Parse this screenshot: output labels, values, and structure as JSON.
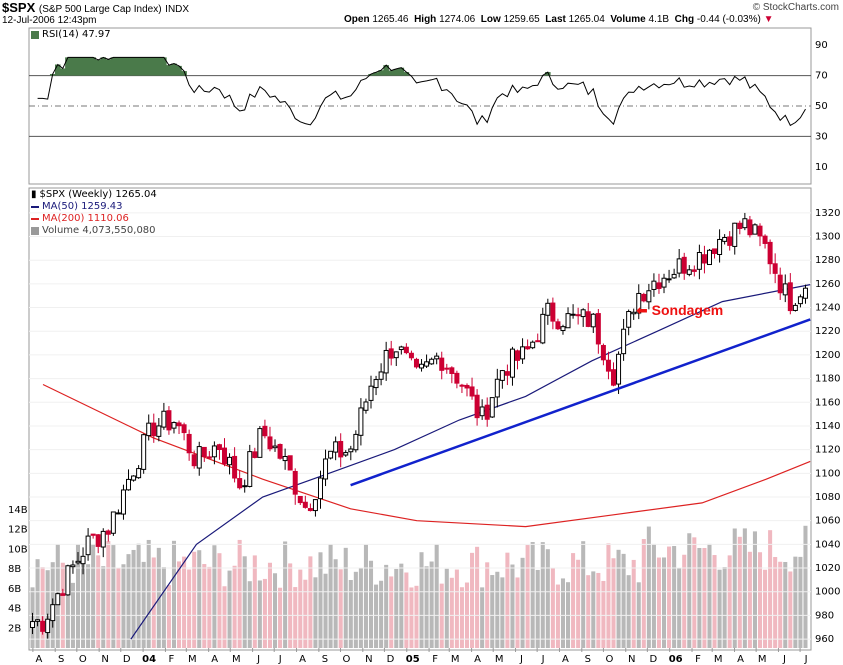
{
  "header": {
    "symbol": "$SPX",
    "name": "(S&P 500 Large Cap Index)",
    "exchange": "INDX",
    "datetime": "12-Jul-2006 12:43pm",
    "copyright": "© StockCharts.com",
    "quote": {
      "open_label": "Open",
      "open": "1265.46",
      "high_label": "High",
      "high": "1274.06",
      "low_label": "Low",
      "low": "1259.65",
      "last_label": "Last",
      "last": "1265.04",
      "volume_label": "Volume",
      "volume": "4.1B",
      "chg_label": "Chg",
      "chg": "-0.44 (-0.03%)"
    }
  },
  "rsi_panel": {
    "label": "RSI(14) 47.97",
    "ticks": [
      "90",
      "70",
      "50",
      "30",
      "10"
    ]
  },
  "price_panel": {
    "legend": {
      "main": "$SPX (Weekly) 1265.04",
      "ma50": "MA(50) 1259.43",
      "ma200": "MA(200) 1110.06",
      "volume": "Volume 4,073,550,080"
    },
    "annotation": "Sondagem",
    "y_ticks": [
      "1320",
      "1300",
      "1280",
      "1260",
      "1240",
      "1220",
      "1200",
      "1180",
      "1160",
      "1140",
      "1120",
      "1100",
      "1080",
      "1060",
      "1040",
      "1020",
      "1000",
      "980",
      "960"
    ],
    "volume_ticks": [
      "14B",
      "12B",
      "10B",
      "8B",
      "6B",
      "4B",
      "2B"
    ],
    "x_labels": [
      "A",
      "S",
      "O",
      "N",
      "D",
      "04",
      "F",
      "M",
      "A",
      "M",
      "J",
      "J",
      "A",
      "S",
      "O",
      "N",
      "D",
      "05",
      "F",
      "M",
      "A",
      "M",
      "J",
      "J",
      "A",
      "S",
      "O",
      "N",
      "D",
      "06",
      "F",
      "M",
      "A",
      "M",
      "J",
      "J"
    ]
  },
  "colors": {
    "up": "#000000",
    "down": "#cc0033",
    "ma50": "#1a1a7a",
    "ma200": "#dd2222",
    "trendline": "#1122cc",
    "vol_up": "#b8b8b8",
    "vol_down": "#f0b8c0",
    "rsi_fill": "#4a7a4a",
    "annotation": "#ee1111"
  },
  "chart_data": {
    "type": "candlestick",
    "title": "$SPX (S&P 500 Large Cap Index) Weekly",
    "period": "Aug 2003 – Jul 2006",
    "anchors": [
      {
        "date": "2003-08",
        "price": 975
      },
      {
        "date": "2003-09",
        "price": 1010
      },
      {
        "date": "2003-10",
        "price": 1040
      },
      {
        "date": "2003-11",
        "price": 1055
      },
      {
        "date": "2003-12",
        "price": 1100
      },
      {
        "date": "2004-01",
        "price": 1140
      },
      {
        "date": "2004-02",
        "price": 1145
      },
      {
        "date": "2004-03",
        "price": 1110
      },
      {
        "date": "2004-04",
        "price": 1125
      },
      {
        "date": "2004-05",
        "price": 1090
      },
      {
        "date": "2004-06",
        "price": 1135
      },
      {
        "date": "2004-07",
        "price": 1110
      },
      {
        "date": "2004-08",
        "price": 1070
      },
      {
        "date": "2004-09",
        "price": 1115
      },
      {
        "date": "2004-10",
        "price": 1120
      },
      {
        "date": "2004-11",
        "price": 1180
      },
      {
        "date": "2004-12",
        "price": 1210
      },
      {
        "date": "2005-01",
        "price": 1180
      },
      {
        "date": "2005-02",
        "price": 1200
      },
      {
        "date": "2005-03",
        "price": 1180
      },
      {
        "date": "2005-04",
        "price": 1145
      },
      {
        "date": "2005-05",
        "price": 1190
      },
      {
        "date": "2005-06",
        "price": 1200
      },
      {
        "date": "2005-07",
        "price": 1235
      },
      {
        "date": "2005-08",
        "price": 1230
      },
      {
        "date": "2005-09",
        "price": 1230
      },
      {
        "date": "2005-10",
        "price": 1185
      },
      {
        "date": "2005-11",
        "price": 1250
      },
      {
        "date": "2005-12",
        "price": 1265
      },
      {
        "date": "2006-01",
        "price": 1275
      },
      {
        "date": "2006-02",
        "price": 1285
      },
      {
        "date": "2006-03",
        "price": 1300
      },
      {
        "date": "2006-04",
        "price": 1310
      },
      {
        "date": "2006-05",
        "price": 1290
      },
      {
        "date": "2006-06",
        "price": 1245
      },
      {
        "date": "2006-07",
        "price": 1265
      }
    ],
    "ma50": [
      {
        "date": "2003-12",
        "price": 960
      },
      {
        "date": "2004-03",
        "price": 1040
      },
      {
        "date": "2004-06",
        "price": 1080
      },
      {
        "date": "2004-09",
        "price": 1100
      },
      {
        "date": "2004-12",
        "price": 1120
      },
      {
        "date": "2005-03",
        "price": 1145
      },
      {
        "date": "2005-06",
        "price": 1165
      },
      {
        "date": "2005-09",
        "price": 1195
      },
      {
        "date": "2005-12",
        "price": 1220
      },
      {
        "date": "2006-03",
        "price": 1245
      },
      {
        "date": "2006-07",
        "price": 1259.43
      }
    ],
    "ma200": [
      {
        "date": "2003-08",
        "price": 1175
      },
      {
        "date": "2004-01",
        "price": 1130
      },
      {
        "date": "2004-06",
        "price": 1095
      },
      {
        "date": "2004-10",
        "price": 1070
      },
      {
        "date": "2005-01",
        "price": 1060
      },
      {
        "date": "2005-06",
        "price": 1055
      },
      {
        "date": "2005-10",
        "price": 1065
      },
      {
        "date": "2006-02",
        "price": 1075
      },
      {
        "date": "2006-05",
        "price": 1095
      },
      {
        "date": "2006-07",
        "price": 1110.06
      }
    ],
    "trendline": [
      {
        "date": "2004-10",
        "price": 1090
      },
      {
        "date": "2006-07",
        "price": 1230
      }
    ],
    "rsi": {
      "current": 47.97,
      "levels": [
        70,
        50,
        30
      ],
      "ylim": [
        0,
        100
      ]
    },
    "ylim": [
      955,
      1330
    ],
    "volume_unit": "B",
    "volume_ylim": [
      0,
      15
    ],
    "annotations": [
      {
        "text": "Sondagem",
        "date": "2005-12",
        "price": 1225
      }
    ]
  }
}
